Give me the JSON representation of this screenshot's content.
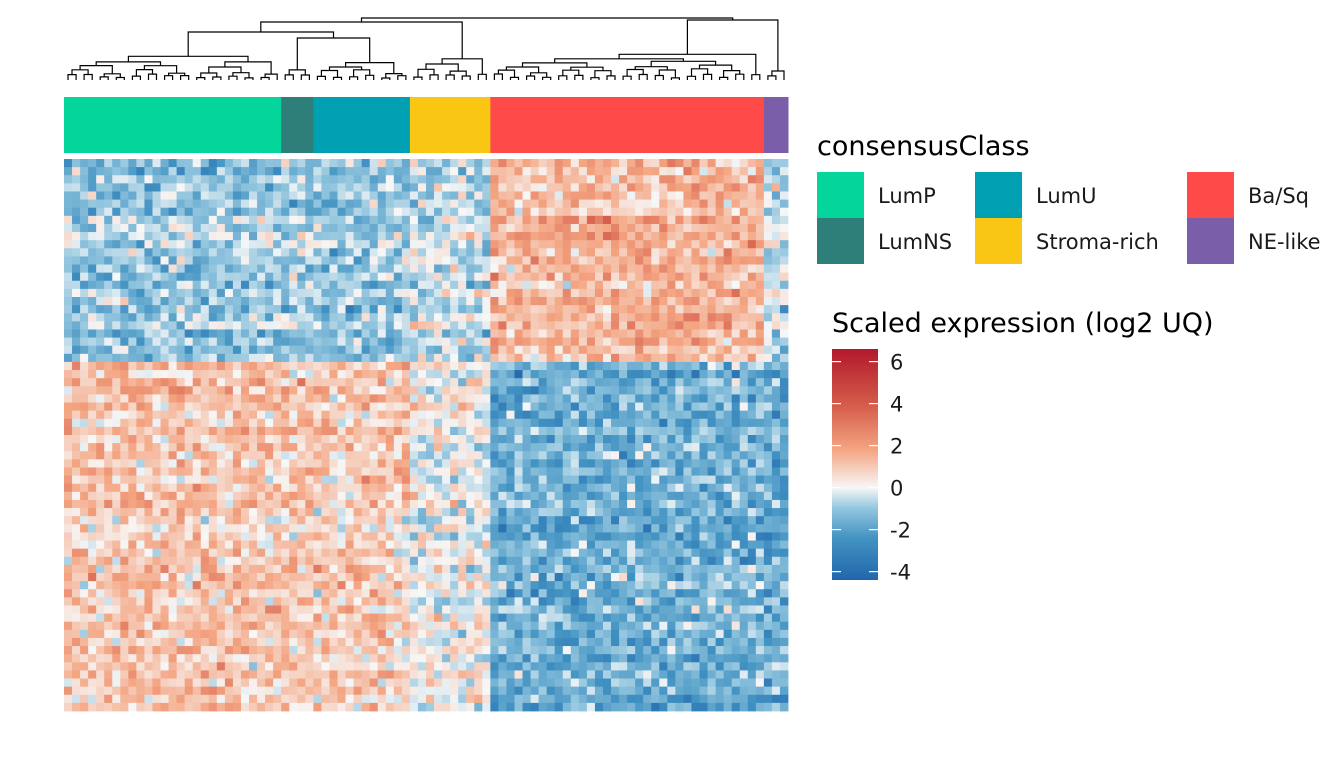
{
  "chart_data": {
    "type": "heatmap",
    "title": "",
    "xlabel": "",
    "ylabel": "",
    "n_samples": 90,
    "n_genes": 68,
    "column_annotation": {
      "title": "consensusClass",
      "classes": [
        {
          "name": "LumP",
          "color": "#04D59B",
          "n_samples": 27
        },
        {
          "name": "LumNS",
          "color": "#2E7F79",
          "n_samples": 4
        },
        {
          "name": "LumU",
          "color": "#00A0B2",
          "n_samples": 12
        },
        {
          "name": "Stroma-rich",
          "color": "#F8C613",
          "n_samples": 10
        },
        {
          "name": "Ba/Sq",
          "color": "#FF4A4A",
          "n_samples": 34
        },
        {
          "name": "NE-like",
          "color": "#7B5EA9",
          "n_samples": 3
        }
      ]
    },
    "gene_blocks": [
      {
        "genes": 25,
        "mean_by_class": {
          "LumP": -1.1,
          "LumNS": -1.0,
          "LumU": -1.2,
          "Stroma-rich": -0.6,
          "Ba/Sq": 1.6,
          "NE-like": -0.6
        }
      },
      {
        "genes": 43,
        "mean_by_class": {
          "LumP": 1.2,
          "LumNS": 1.1,
          "LumU": 1.0,
          "Stroma-rich": 0.0,
          "Ba/Sq": -1.8,
          "NE-like": -2.0
        }
      }
    ],
    "color_scale": {
      "title": "Scaled expression (log2 UQ)",
      "min": -4.4,
      "max": 6.6,
      "ticks": [
        6,
        4,
        2,
        0,
        -2,
        -4
      ],
      "tick_labels": [
        "6",
        "4",
        "2",
        "0",
        "-2",
        "-4"
      ],
      "palette": [
        "#2166AC",
        "#4393C3",
        "#92C5DE",
        "#F7F7F7",
        "#F4A582",
        "#D6604D",
        "#B2182B"
      ],
      "palette_values": [
        -4.4,
        -2.4,
        -1.0,
        0,
        1.8,
        3.8,
        6.6
      ]
    },
    "dendrogram": "column dendrogram shown on top",
    "legend_placement": "right"
  }
}
